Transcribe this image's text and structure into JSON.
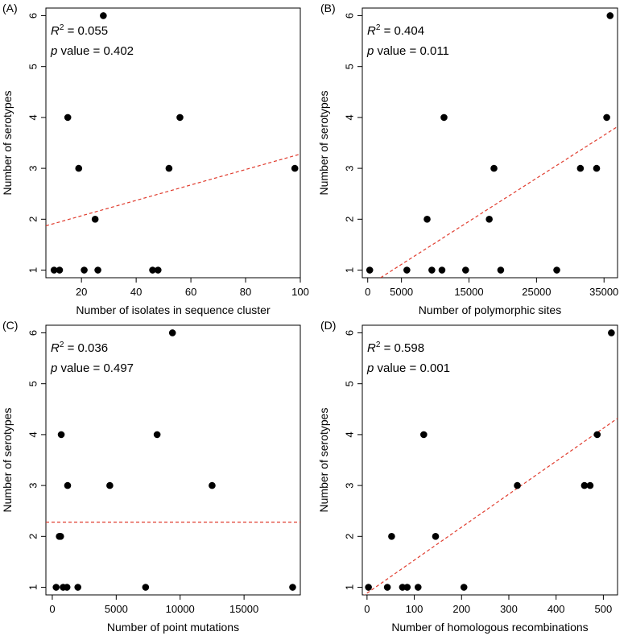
{
  "chart_data": [
    {
      "type": "scatter",
      "panel_label": "(A)",
      "xlabel": "Number of isolates in sequence cluster",
      "ylabel": "Number of serotypes",
      "xlim": [
        7,
        100
      ],
      "ylim": [
        0.85,
        6.15
      ],
      "xticks": [
        20,
        40,
        60,
        80,
        100
      ],
      "xtick_labels": [
        "20",
        "40",
        "60",
        "80",
        "100"
      ],
      "yticks": [
        1,
        2,
        3,
        4,
        5,
        6
      ],
      "ytick_labels": [
        "1",
        "2",
        "3",
        "4",
        "5",
        "6"
      ],
      "stat_r2_prefix": "R",
      "stat_r2_sup": "2",
      "stat_r2_value": " = 0.055",
      "stat_p_prefix": "p",
      "stat_p_value": " value = 0.402",
      "points": [
        {
          "x": 10,
          "y": 1
        },
        {
          "x": 12,
          "y": 1
        },
        {
          "x": 15,
          "y": 4
        },
        {
          "x": 19,
          "y": 3
        },
        {
          "x": 21,
          "y": 1
        },
        {
          "x": 25,
          "y": 2
        },
        {
          "x": 26,
          "y": 1
        },
        {
          "x": 28,
          "y": 6
        },
        {
          "x": 46,
          "y": 1
        },
        {
          "x": 48,
          "y": 1
        },
        {
          "x": 52,
          "y": 3
        },
        {
          "x": 56,
          "y": 4
        },
        {
          "x": 98,
          "y": 3
        }
      ],
      "fit_line": {
        "x": [
          7,
          100
        ],
        "y": [
          1.87,
          3.28
        ]
      },
      "fit_color": "#e03b2d"
    },
    {
      "type": "scatter",
      "panel_label": "(B)",
      "xlabel": "Number of polymorphic sites",
      "ylabel": "Number of serotypes",
      "xlim": [
        -800,
        37000
      ],
      "ylim": [
        0.85,
        6.15
      ],
      "xticks": [
        0,
        5000,
        15000,
        25000,
        35000
      ],
      "xtick_labels": [
        "0",
        "5000",
        "15000",
        "25000",
        "35000"
      ],
      "yticks": [
        1,
        2,
        3,
        4,
        5,
        6
      ],
      "ytick_labels": [
        "1",
        "2",
        "3",
        "4",
        "5",
        "6"
      ],
      "stat_r2_prefix": "R",
      "stat_r2_sup": "2",
      "stat_r2_value": " = 0.404",
      "stat_p_prefix": "p",
      "stat_p_value": " value = 0.011",
      "points": [
        {
          "x": 300,
          "y": 1
        },
        {
          "x": 5800,
          "y": 1
        },
        {
          "x": 8800,
          "y": 2
        },
        {
          "x": 9500,
          "y": 1
        },
        {
          "x": 11000,
          "y": 1
        },
        {
          "x": 11300,
          "y": 4
        },
        {
          "x": 14500,
          "y": 1
        },
        {
          "x": 18000,
          "y": 2
        },
        {
          "x": 18700,
          "y": 3
        },
        {
          "x": 19700,
          "y": 1
        },
        {
          "x": 28000,
          "y": 1
        },
        {
          "x": 31500,
          "y": 3
        },
        {
          "x": 33900,
          "y": 3
        },
        {
          "x": 35400,
          "y": 4
        },
        {
          "x": 35900,
          "y": 6
        }
      ],
      "fit_line": {
        "x": [
          1900,
          37000
        ],
        "y": [
          0.85,
          3.82
        ]
      },
      "fit_color": "#e03b2d"
    },
    {
      "type": "scatter",
      "panel_label": "(C)",
      "xlabel": "Number of point mutations",
      "ylabel": "Number of serotypes",
      "xlim": [
        -500,
        19400
      ],
      "ylim": [
        0.85,
        6.15
      ],
      "xticks": [
        0,
        5000,
        10000,
        15000
      ],
      "xtick_labels": [
        "0",
        "5000",
        "10000",
        "15000"
      ],
      "yticks": [
        1,
        2,
        3,
        4,
        5,
        6
      ],
      "ytick_labels": [
        "1",
        "2",
        "3",
        "4",
        "5",
        "6"
      ],
      "stat_r2_prefix": "R",
      "stat_r2_sup": "2",
      "stat_r2_value": " = 0.036",
      "stat_p_prefix": "p",
      "stat_p_value": " value = 0.497",
      "points": [
        {
          "x": 300,
          "y": 1
        },
        {
          "x": 550,
          "y": 2
        },
        {
          "x": 650,
          "y": 2
        },
        {
          "x": 700,
          "y": 4
        },
        {
          "x": 850,
          "y": 1
        },
        {
          "x": 1150,
          "y": 1
        },
        {
          "x": 1200,
          "y": 3
        },
        {
          "x": 2000,
          "y": 1
        },
        {
          "x": 4500,
          "y": 3
        },
        {
          "x": 7300,
          "y": 1
        },
        {
          "x": 8200,
          "y": 4
        },
        {
          "x": 9400,
          "y": 6
        },
        {
          "x": 12500,
          "y": 3
        },
        {
          "x": 18800,
          "y": 1
        }
      ],
      "fit_line": {
        "x": [
          -500,
          19400
        ],
        "y": [
          2.28,
          2.28
        ]
      },
      "fit_color": "#e03b2d"
    },
    {
      "type": "scatter",
      "panel_label": "(D)",
      "xlabel": "Number of homologous recombinations",
      "ylabel": "Number of serotypes",
      "xlim": [
        -10,
        530
      ],
      "ylim": [
        0.85,
        6.15
      ],
      "xticks": [
        0,
        100,
        200,
        300,
        400,
        500
      ],
      "xtick_labels": [
        "0",
        "100",
        "200",
        "300",
        "400",
        "500"
      ],
      "yticks": [
        1,
        2,
        3,
        4,
        5,
        6
      ],
      "ytick_labels": [
        "1",
        "2",
        "3",
        "4",
        "5",
        "6"
      ],
      "stat_r2_prefix": "R",
      "stat_r2_sup": "2",
      "stat_r2_value": " = 0.598",
      "stat_p_prefix": "p",
      "stat_p_value": " value = 0.001",
      "points": [
        {
          "x": 3,
          "y": 1
        },
        {
          "x": 43,
          "y": 1
        },
        {
          "x": 52,
          "y": 2
        },
        {
          "x": 75,
          "y": 1
        },
        {
          "x": 85,
          "y": 1
        },
        {
          "x": 108,
          "y": 1
        },
        {
          "x": 120,
          "y": 4
        },
        {
          "x": 145,
          "y": 2
        },
        {
          "x": 205,
          "y": 1
        },
        {
          "x": 318,
          "y": 3
        },
        {
          "x": 460,
          "y": 3
        },
        {
          "x": 472,
          "y": 3
        },
        {
          "x": 487,
          "y": 4
        },
        {
          "x": 517,
          "y": 6
        }
      ],
      "fit_line": {
        "x": [
          -10,
          530
        ],
        "y": [
          0.82,
          4.32
        ]
      },
      "fit_color": "#e03b2d"
    }
  ]
}
